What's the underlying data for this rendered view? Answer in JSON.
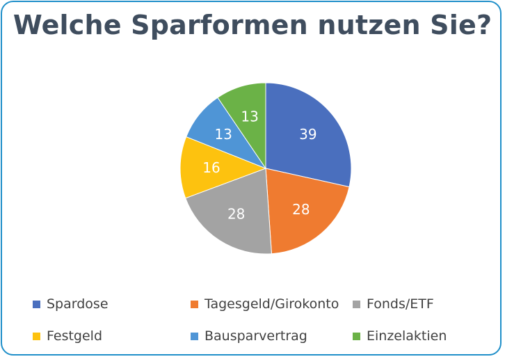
{
  "chart_data": {
    "type": "pie",
    "title": "Welche Sparformen nutzen Sie?",
    "categories": [
      "Spardose",
      "Tagesgeld/Girokonto",
      "Fonds/ETF",
      "Festgeld",
      "Bausparvertrag",
      "Einzelaktien"
    ],
    "values": [
      39,
      28,
      28,
      16,
      13,
      13
    ],
    "colors": [
      "#4a6fbe",
      "#ef7b30",
      "#a3a3a3",
      "#fdc20f",
      "#4f95d6",
      "#6bb247"
    ],
    "data_labels": [
      "39",
      "28",
      "28",
      "16",
      "13",
      "13"
    ],
    "legend_position": "bottom"
  }
}
